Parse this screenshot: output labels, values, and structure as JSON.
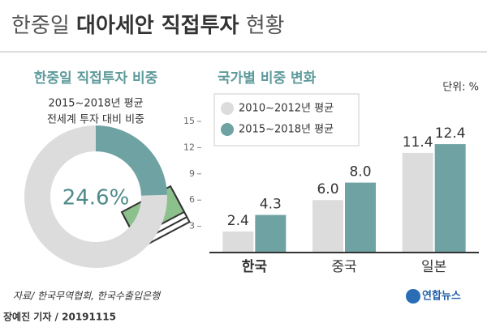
{
  "header": {
    "title_a": "한중일",
    "title_b": "대아세안 직접투자",
    "title_c": "현황"
  },
  "chart_data": [
    {
      "type": "donut",
      "title": "한중일 직접투자 비중",
      "subtitle": [
        "2015~2018년 평균",
        "전세계 투자 대비 비중"
      ],
      "values": [
        24.6
      ],
      "value_labels": [
        "24.6%"
      ],
      "color": "#6fa3a3",
      "track_color": "#dcdcdc"
    },
    {
      "type": "bar",
      "title": "국가별 비중 변화",
      "unit": "단위: %",
      "categories": [
        "한국",
        "중국",
        "일본"
      ],
      "series": [
        {
          "name": "2010~2012년 평균",
          "color": "#dcdcdc",
          "values": [
            2.4,
            6.0,
            11.4
          ],
          "value_labels": [
            "2.4",
            "6.0",
            "11.4"
          ]
        },
        {
          "name": "2015~2018년 평균",
          "color": "#6fa3a3",
          "values": [
            4.3,
            8.0,
            12.4
          ],
          "value_labels": [
            "4.3",
            "8.0",
            "12.4"
          ]
        }
      ],
      "ylim": [
        0,
        15
      ],
      "yticks": [
        3,
        6,
        9,
        12,
        15
      ]
    }
  ],
  "footer": {
    "source": "자료/ 한국무역협회, 한국수출입은행",
    "logo": "연합뉴스",
    "byline": "장예진 기자 / 20191115"
  }
}
